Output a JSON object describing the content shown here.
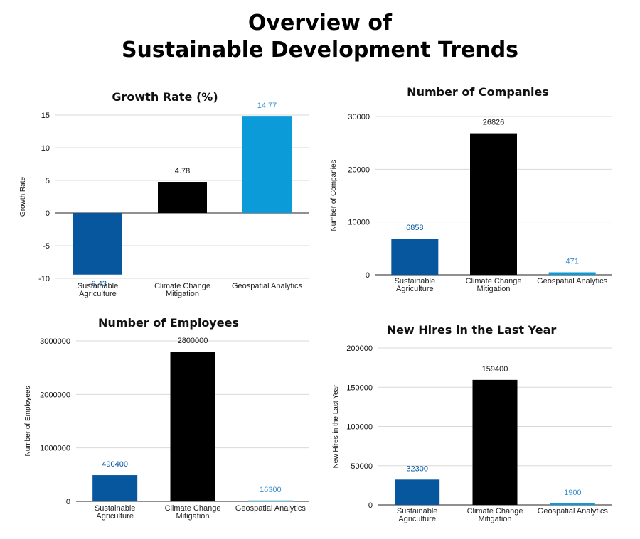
{
  "page": {
    "title_line1": "Overview of",
    "title_line2": "Sustainable Development Trends"
  },
  "colors": {
    "Sustainable Agriculture": "#06579e",
    "Climate Change Mitigation": "#000000",
    "Geospatial Analytics": "#0a9bd8",
    "label_Sustainable Agriculture": "#06579e",
    "label_Climate Change Mitigation": "#111111",
    "label_Geospatial Analytics": "#3b8fd0"
  },
  "chart_data": [
    {
      "id": "growth",
      "type": "bar",
      "title": "Growth Rate (%)",
      "xlabel": "",
      "ylabel": "Growth Rate",
      "categories": [
        "Sustainable Agriculture",
        "Climate Change Mitigation",
        "Geospatial Analytics"
      ],
      "category_lines": [
        [
          "Sustainable",
          "Agriculture"
        ],
        [
          "Climate Change",
          "Mitigation"
        ],
        [
          "Geospatial Analytics"
        ]
      ],
      "values": [
        -9.43,
        4.78,
        14.77
      ],
      "value_labels": [
        "-9.43",
        "4.78",
        "14.77"
      ],
      "ylim": [
        -10,
        15
      ],
      "yticks": [
        -10,
        -5,
        0,
        5,
        10,
        15
      ],
      "grid": true,
      "legend": "none"
    },
    {
      "id": "companies",
      "type": "bar",
      "title": "Number of Companies",
      "xlabel": "",
      "ylabel": "Number of Companies",
      "categories": [
        "Sustainable Agriculture",
        "Climate Change Mitigation",
        "Geospatial Analytics"
      ],
      "category_lines": [
        [
          "Sustainable",
          "Agriculture"
        ],
        [
          "Climate Change",
          "Mitigation"
        ],
        [
          "Geospatial Analytics"
        ]
      ],
      "values": [
        6858,
        26826,
        471
      ],
      "value_labels": [
        "6858",
        "26826",
        "471"
      ],
      "ylim": [
        0,
        30000
      ],
      "yticks": [
        0,
        10000,
        20000,
        30000
      ],
      "grid": true,
      "legend": "none"
    },
    {
      "id": "employees",
      "type": "bar",
      "title": "Number of Employees",
      "xlabel": "",
      "ylabel": "Number of Employees",
      "categories": [
        "Sustainable Agriculture",
        "Climate Change Mitigation",
        "Geospatial Analytics"
      ],
      "category_lines": [
        [
          "Sustainable",
          "Agriculture"
        ],
        [
          "Climate Change",
          "Mitigation"
        ],
        [
          "Geospatial Analytics"
        ]
      ],
      "values": [
        490400,
        2800000,
        16300
      ],
      "value_labels": [
        "490400",
        "2800000",
        "16300"
      ],
      "ylim": [
        0,
        3000000
      ],
      "yticks": [
        0,
        1000000,
        2000000,
        3000000
      ],
      "grid": true,
      "legend": "none"
    },
    {
      "id": "hires",
      "type": "bar",
      "title": "New Hires in the Last Year",
      "xlabel": "",
      "ylabel": "New Hires in the Last Year",
      "categories": [
        "Sustainable Agriculture",
        "Climate Change Mitigation",
        "Geospatial Analytics"
      ],
      "category_lines": [
        [
          "Sustainable",
          "Agriculture"
        ],
        [
          "Climate Change",
          "Mitigation"
        ],
        [
          "Geospatial Analytics"
        ]
      ],
      "values": [
        32300,
        159400,
        1900
      ],
      "value_labels": [
        "32300",
        "159400",
        "1900"
      ],
      "ylim": [
        0,
        200000
      ],
      "yticks": [
        0,
        50000,
        100000,
        150000,
        200000
      ],
      "grid": true,
      "legend": "none"
    }
  ]
}
